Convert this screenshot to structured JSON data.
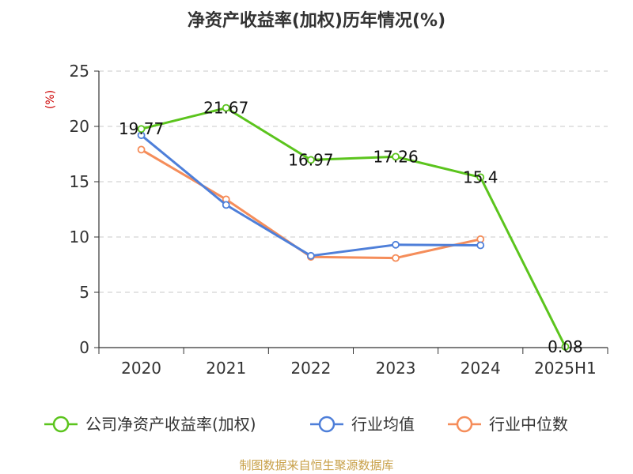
{
  "chart_data": {
    "type": "line",
    "title": "净资产收益率(加权)历年情况(%)",
    "ylabel": "(%)",
    "categories": [
      "2020",
      "2021",
      "2022",
      "2023",
      "2024",
      "2025H1"
    ],
    "ylim": [
      0,
      25
    ],
    "yticks": [
      0,
      5,
      10,
      15,
      20,
      25
    ],
    "grid": true,
    "legend_position": "bottom",
    "series": [
      {
        "name": "公司净资产收益率(加权)",
        "color": "#5bc41d",
        "values": [
          19.77,
          21.67,
          16.97,
          17.26,
          15.4,
          0.08
        ],
        "labels": [
          "19.77",
          "21.67",
          "16.97",
          "17.26",
          "15.4",
          "0.08"
        ]
      },
      {
        "name": "行业均值",
        "color": "#4e7fd9",
        "values": [
          19.2,
          12.9,
          8.3,
          9.3,
          9.25,
          null
        ]
      },
      {
        "name": "行业中位数",
        "color": "#f58d5a",
        "values": [
          17.9,
          13.4,
          8.2,
          8.1,
          9.8,
          null
        ]
      }
    ]
  },
  "footer": {
    "source": "制图数据来自恒生聚源数据库"
  }
}
